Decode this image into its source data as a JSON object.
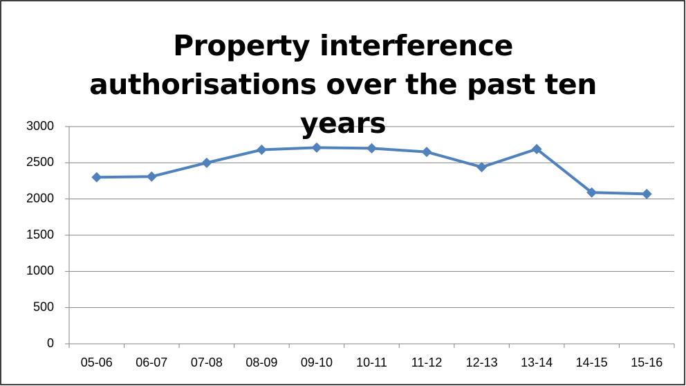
{
  "chart_data": {
    "type": "line",
    "title": "Property interference authorisations over the past ten years",
    "categories": [
      "05-06",
      "06-07",
      "07-08",
      "08-09",
      "09-10",
      "10-11",
      "11-12",
      "12-13",
      "13-14",
      "14-15",
      "15-16"
    ],
    "series": [
      {
        "name": "Property interference authorisations",
        "color": "#4f81bd",
        "values": [
          2300,
          2310,
          2500,
          2680,
          2710,
          2700,
          2650,
          2440,
          2690,
          2090,
          2070
        ]
      }
    ],
    "ylim": [
      0,
      3000
    ],
    "yticks": [
      0,
      500,
      1000,
      1500,
      2000,
      2500,
      3000
    ],
    "grid": true,
    "legend": false
  }
}
